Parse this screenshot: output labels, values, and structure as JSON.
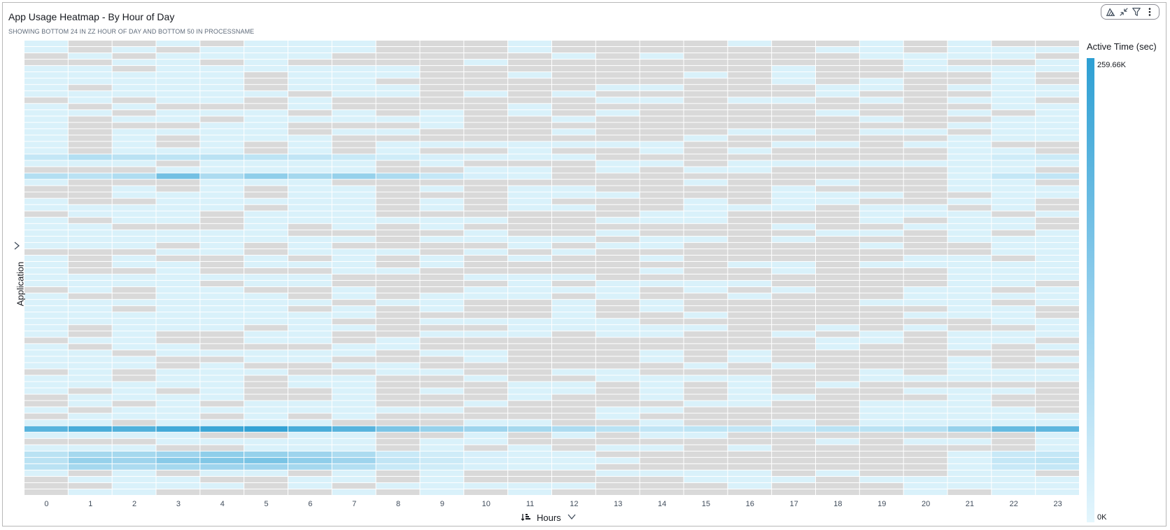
{
  "header": {
    "title": "App Usage Heatmap - By Hour of Day",
    "subtitle": "SHOWING BOTTOM 24 IN ZZ HOUR OF DAY AND BOTTOM 50 IN PROCESSNAME"
  },
  "toolbar": {
    "icons": [
      "chart-type-icon",
      "collapse-icon",
      "filter-icon",
      "more-vertical-icon"
    ]
  },
  "colors": {
    "empty_cell": "#d9d9d9",
    "scale_low": "#e4f6fd",
    "scale_high": "#2d9fd3",
    "grid": "#ffffff"
  },
  "chart_data": {
    "type": "heatmap",
    "title": "App Usage Heatmap - By Hour of Day",
    "xlabel": "Hours",
    "ylabel": "Application",
    "x": [
      "0",
      "1",
      "2",
      "3",
      "4",
      "5",
      "6",
      "7",
      "8",
      "9",
      "10",
      "11",
      "12",
      "13",
      "14",
      "15",
      "16",
      "17",
      "18",
      "19",
      "20",
      "21",
      "22",
      "23"
    ],
    "row_count": 72,
    "value_label": "Active Time (sec)",
    "value_range": [
      0,
      259660
    ],
    "legend_max_label": "259.66K",
    "legend_min_label": "0K",
    "legend_position": "right",
    "highlight_rows": [
      {
        "row": 18,
        "values": [
          45000,
          70000,
          60000,
          55000,
          60000,
          55000,
          50000,
          40000,
          30000,
          20000,
          15000,
          12000,
          10000,
          0,
          0,
          0,
          0,
          0,
          0,
          0,
          0,
          12000,
          30000,
          35000
        ]
      },
      {
        "row": 21,
        "values": [
          70000,
          60000,
          75000,
          160000,
          80000,
          120000,
          90000,
          110000,
          80000,
          45000,
          20000,
          15000,
          0,
          0,
          0,
          0,
          0,
          0,
          0,
          0,
          0,
          12000,
          45000,
          50000
        ]
      },
      {
        "row": 61,
        "values": [
          200000,
          220000,
          210000,
          230000,
          240000,
          250000,
          220000,
          200000,
          150000,
          110000,
          100000,
          90000,
          80000,
          60000,
          50000,
          55000,
          50000,
          50000,
          60000,
          60000,
          70000,
          110000,
          180000,
          190000
        ]
      },
      {
        "row": 65,
        "values": [
          60000,
          90000,
          90000,
          100000,
          120000,
          110000,
          100000,
          80000,
          40000,
          30000,
          20000,
          15000,
          12000,
          0,
          0,
          0,
          0,
          0,
          0,
          0,
          0,
          15000,
          40000,
          45000
        ]
      },
      {
        "row": 66,
        "values": [
          60000,
          110000,
          100000,
          130000,
          140000,
          150000,
          120000,
          100000,
          50000,
          35000,
          20000,
          15000,
          12000,
          10000,
          0,
          0,
          0,
          0,
          0,
          0,
          0,
          15000,
          45000,
          55000
        ]
      },
      {
        "row": 67,
        "values": [
          60000,
          90000,
          80000,
          90000,
          100000,
          100000,
          90000,
          70000,
          40000,
          30000,
          18000,
          12000,
          10000,
          0,
          0,
          0,
          0,
          0,
          0,
          0,
          0,
          15000,
          40000,
          45000
        ]
      }
    ]
  },
  "axis": {
    "y_chevron_icon": "chevron-right-icon",
    "x_sort_icon": "sort-icon",
    "x_chevron_icon": "chevron-down-icon"
  }
}
